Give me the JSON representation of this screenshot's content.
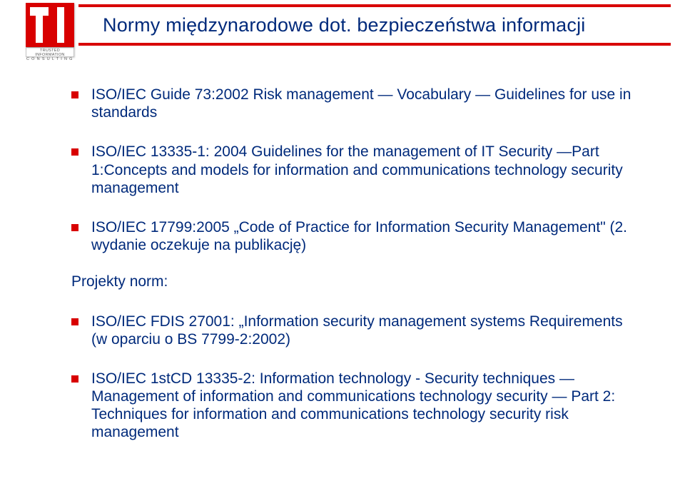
{
  "header": {
    "title": "Normy międzynarodowe dot. bezpieczeństwa informacji"
  },
  "logo": {
    "line1": "TRUSTED INFORMATION",
    "line2": "CONSULTING"
  },
  "bullets": [
    "ISO/IEC Guide 73:2002 Risk management — Vocabulary — Guidelines for use in standards",
    "ISO/IEC 13335-1: 2004 Guidelines for the management of IT Security —Part 1:Concepts and models for information and communications technology security management",
    "ISO/IEC 17799:2005 „Code of Practice for Information Security Management\" (2. wydanie oczekuje na publikację)"
  ],
  "section_label": "Projekty norm:",
  "bullets2": [
    "ISO/IEC FDIS 27001: „Information security management systems Requirements (w oparciu o BS 7799-2:2002)",
    "ISO/IEC 1stCD 13335-2: Information technology - Security techniques — Management of information and communications technology security — Part 2: Techniques for information and communications technology security risk management"
  ],
  "colors": {
    "accent": "#d80000",
    "text": "#002a7b",
    "background": "#ffffff"
  }
}
